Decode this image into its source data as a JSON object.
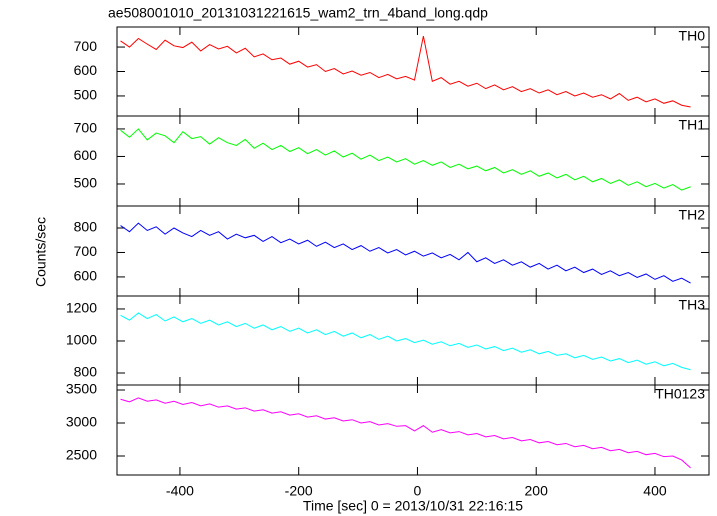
{
  "chart_data": [
    {
      "type": "line",
      "title": "ae508001010_20131031221615_wam2_trn_4band_long.qdp",
      "x": [
        -500,
        -485,
        -470,
        -455,
        -440,
        -425,
        -410,
        -395,
        -380,
        -365,
        -350,
        -335,
        -320,
        -305,
        -290,
        -275,
        -260,
        -245,
        -230,
        -215,
        -200,
        -185,
        -170,
        -155,
        -140,
        -125,
        -110,
        -95,
        -80,
        -65,
        -50,
        -35,
        -20,
        -5,
        10,
        25,
        40,
        55,
        70,
        85,
        100,
        115,
        130,
        145,
        160,
        175,
        190,
        205,
        220,
        235,
        250,
        265,
        280,
        295,
        310,
        325,
        340,
        355,
        370,
        385,
        400,
        415,
        430,
        445,
        460
      ],
      "series": [
        {
          "name": "TH0",
          "color": "#ff0000",
          "values": [
            725,
            700,
            735,
            712,
            690,
            728,
            705,
            698,
            720,
            684,
            710,
            692,
            703,
            676,
            695,
            660,
            672,
            648,
            655,
            630,
            642,
            618,
            628,
            600,
            612,
            590,
            602,
            585,
            596,
            575,
            588,
            570,
            580,
            565,
            745,
            560,
            575,
            548,
            560,
            540,
            552,
            530,
            545,
            525,
            538,
            518,
            530,
            512,
            525,
            505,
            518,
            500,
            512,
            495,
            505,
            488,
            510,
            482,
            495,
            476,
            488,
            470,
            480,
            462,
            455
          ]
        }
      ],
      "xlim": [
        -506,
        491
      ],
      "xticks": [
        -400,
        -200,
        0,
        200,
        400
      ],
      "ylim": [
        418,
        782
      ],
      "yticks": [
        500,
        600,
        700
      ]
    },
    {
      "type": "line",
      "x": [
        -500,
        -485,
        -470,
        -455,
        -440,
        -425,
        -410,
        -395,
        -380,
        -365,
        -350,
        -335,
        -320,
        -305,
        -290,
        -275,
        -260,
        -245,
        -230,
        -215,
        -200,
        -185,
        -170,
        -155,
        -140,
        -125,
        -110,
        -95,
        -80,
        -65,
        -50,
        -35,
        -20,
        -5,
        10,
        25,
        40,
        55,
        70,
        85,
        100,
        115,
        130,
        145,
        160,
        175,
        190,
        205,
        220,
        235,
        250,
        265,
        280,
        295,
        310,
        325,
        340,
        355,
        370,
        385,
        400,
        415,
        430,
        445,
        460
      ],
      "series": [
        {
          "name": "TH1",
          "color": "#00ff00",
          "values": [
            695,
            670,
            700,
            660,
            685,
            675,
            650,
            690,
            665,
            672,
            645,
            668,
            650,
            640,
            662,
            630,
            648,
            625,
            640,
            618,
            632,
            610,
            625,
            605,
            620,
            598,
            612,
            590,
            605,
            585,
            598,
            580,
            592,
            572,
            585,
            568,
            580,
            560,
            572,
            555,
            565,
            548,
            560,
            540,
            552,
            535,
            548,
            528,
            540,
            522,
            535,
            515,
            528,
            508,
            520,
            502,
            515,
            495,
            508,
            490,
            502,
            485,
            498,
            478,
            490
          ]
        }
      ],
      "xlim": [
        -506,
        491
      ],
      "xticks": [
        -400,
        -200,
        0,
        200,
        400
      ],
      "ylim": [
        420,
        747
      ],
      "yticks": [
        500,
        600,
        700
      ]
    },
    {
      "type": "line",
      "ylabel": "Counts/sec",
      "x": [
        -500,
        -485,
        -470,
        -455,
        -440,
        -425,
        -410,
        -395,
        -380,
        -365,
        -350,
        -335,
        -320,
        -305,
        -290,
        -275,
        -260,
        -245,
        -230,
        -215,
        -200,
        -185,
        -170,
        -155,
        -140,
        -125,
        -110,
        -95,
        -80,
        -65,
        -50,
        -35,
        -20,
        -5,
        10,
        25,
        40,
        55,
        70,
        85,
        100,
        115,
        130,
        145,
        160,
        175,
        190,
        205,
        220,
        235,
        250,
        265,
        280,
        295,
        310,
        325,
        340,
        355,
        370,
        385,
        400,
        415,
        430,
        445,
        460
      ],
      "series": [
        {
          "name": "TH2",
          "color": "#0000ff",
          "values": [
            810,
            785,
            820,
            790,
            805,
            775,
            800,
            780,
            765,
            790,
            770,
            785,
            755,
            775,
            760,
            770,
            745,
            765,
            740,
            755,
            735,
            750,
            725,
            742,
            720,
            735,
            712,
            728,
            705,
            720,
            698,
            712,
            690,
            705,
            685,
            698,
            678,
            692,
            670,
            700,
            662,
            678,
            655,
            670,
            648,
            662,
            640,
            655,
            632,
            648,
            625,
            640,
            618,
            632,
            610,
            625,
            605,
            618,
            598,
            612,
            590,
            605,
            582,
            595,
            575
          ]
        }
      ],
      "xlim": [
        -506,
        491
      ],
      "xticks": [
        -400,
        -200,
        0,
        200,
        400
      ],
      "ylim": [
        522,
        890
      ],
      "yticks": [
        600,
        700,
        800
      ]
    },
    {
      "type": "line",
      "x": [
        -500,
        -485,
        -470,
        -455,
        -440,
        -425,
        -410,
        -395,
        -380,
        -365,
        -350,
        -335,
        -320,
        -305,
        -290,
        -275,
        -260,
        -245,
        -230,
        -215,
        -200,
        -185,
        -170,
        -155,
        -140,
        -125,
        -110,
        -95,
        -80,
        -65,
        -50,
        -35,
        -20,
        -5,
        10,
        25,
        40,
        55,
        70,
        85,
        100,
        115,
        130,
        145,
        160,
        175,
        190,
        205,
        220,
        235,
        250,
        265,
        280,
        295,
        310,
        325,
        340,
        355,
        370,
        385,
        400,
        415,
        430,
        445,
        460
      ],
      "series": [
        {
          "name": "TH3",
          "color": "#00ffff",
          "values": [
            1160,
            1130,
            1175,
            1140,
            1165,
            1125,
            1150,
            1120,
            1140,
            1110,
            1130,
            1100,
            1120,
            1090,
            1110,
            1080,
            1100,
            1070,
            1090,
            1060,
            1080,
            1050,
            1070,
            1040,
            1060,
            1030,
            1050,
            1020,
            1040,
            1010,
            1030,
            1000,
            1015,
            990,
            1005,
            980,
            995,
            970,
            985,
            960,
            975,
            950,
            965,
            940,
            955,
            930,
            945,
            920,
            935,
            910,
            920,
            895,
            910,
            885,
            900,
            875,
            890,
            865,
            880,
            855,
            870,
            845,
            860,
            835,
            820
          ]
        }
      ],
      "xlim": [
        -506,
        491
      ],
      "xticks": [
        -400,
        -200,
        0,
        200,
        400
      ],
      "ylim": [
        725,
        1281
      ],
      "yticks": [
        800,
        1000,
        1200
      ]
    },
    {
      "type": "line",
      "xlabel": "Time [sec] 0 = 2013/10/31 22:16:15",
      "x": [
        -500,
        -485,
        -470,
        -455,
        -440,
        -425,
        -410,
        -395,
        -380,
        -365,
        -350,
        -335,
        -320,
        -305,
        -290,
        -275,
        -260,
        -245,
        -230,
        -215,
        -200,
        -185,
        -170,
        -155,
        -140,
        -125,
        -110,
        -95,
        -80,
        -65,
        -50,
        -35,
        -20,
        -5,
        10,
        25,
        40,
        55,
        70,
        85,
        100,
        115,
        130,
        145,
        160,
        175,
        190,
        205,
        220,
        235,
        250,
        265,
        280,
        295,
        310,
        325,
        340,
        355,
        370,
        385,
        400,
        415,
        430,
        445,
        460
      ],
      "series": [
        {
          "name": "TH0123",
          "color": "#ff00ff",
          "values": [
            3360,
            3320,
            3380,
            3330,
            3350,
            3300,
            3330,
            3280,
            3310,
            3260,
            3290,
            3240,
            3260,
            3210,
            3230,
            3180,
            3200,
            3150,
            3170,
            3120,
            3140,
            3090,
            3110,
            3060,
            3080,
            3030,
            3050,
            3000,
            3020,
            2970,
            2990,
            2950,
            2960,
            2880,
            2960,
            2860,
            2900,
            2850,
            2870,
            2820,
            2840,
            2790,
            2810,
            2760,
            2780,
            2730,
            2750,
            2700,
            2720,
            2670,
            2690,
            2640,
            2660,
            2610,
            2630,
            2580,
            2600,
            2550,
            2570,
            2520,
            2540,
            2490,
            2500,
            2440,
            2320
          ]
        }
      ],
      "xlim": [
        -506,
        491
      ],
      "xticks": [
        -400,
        -200,
        0,
        200,
        400
      ],
      "ylim": [
        2212,
        3576
      ],
      "yticks": [
        2500,
        3000,
        3500
      ]
    }
  ]
}
